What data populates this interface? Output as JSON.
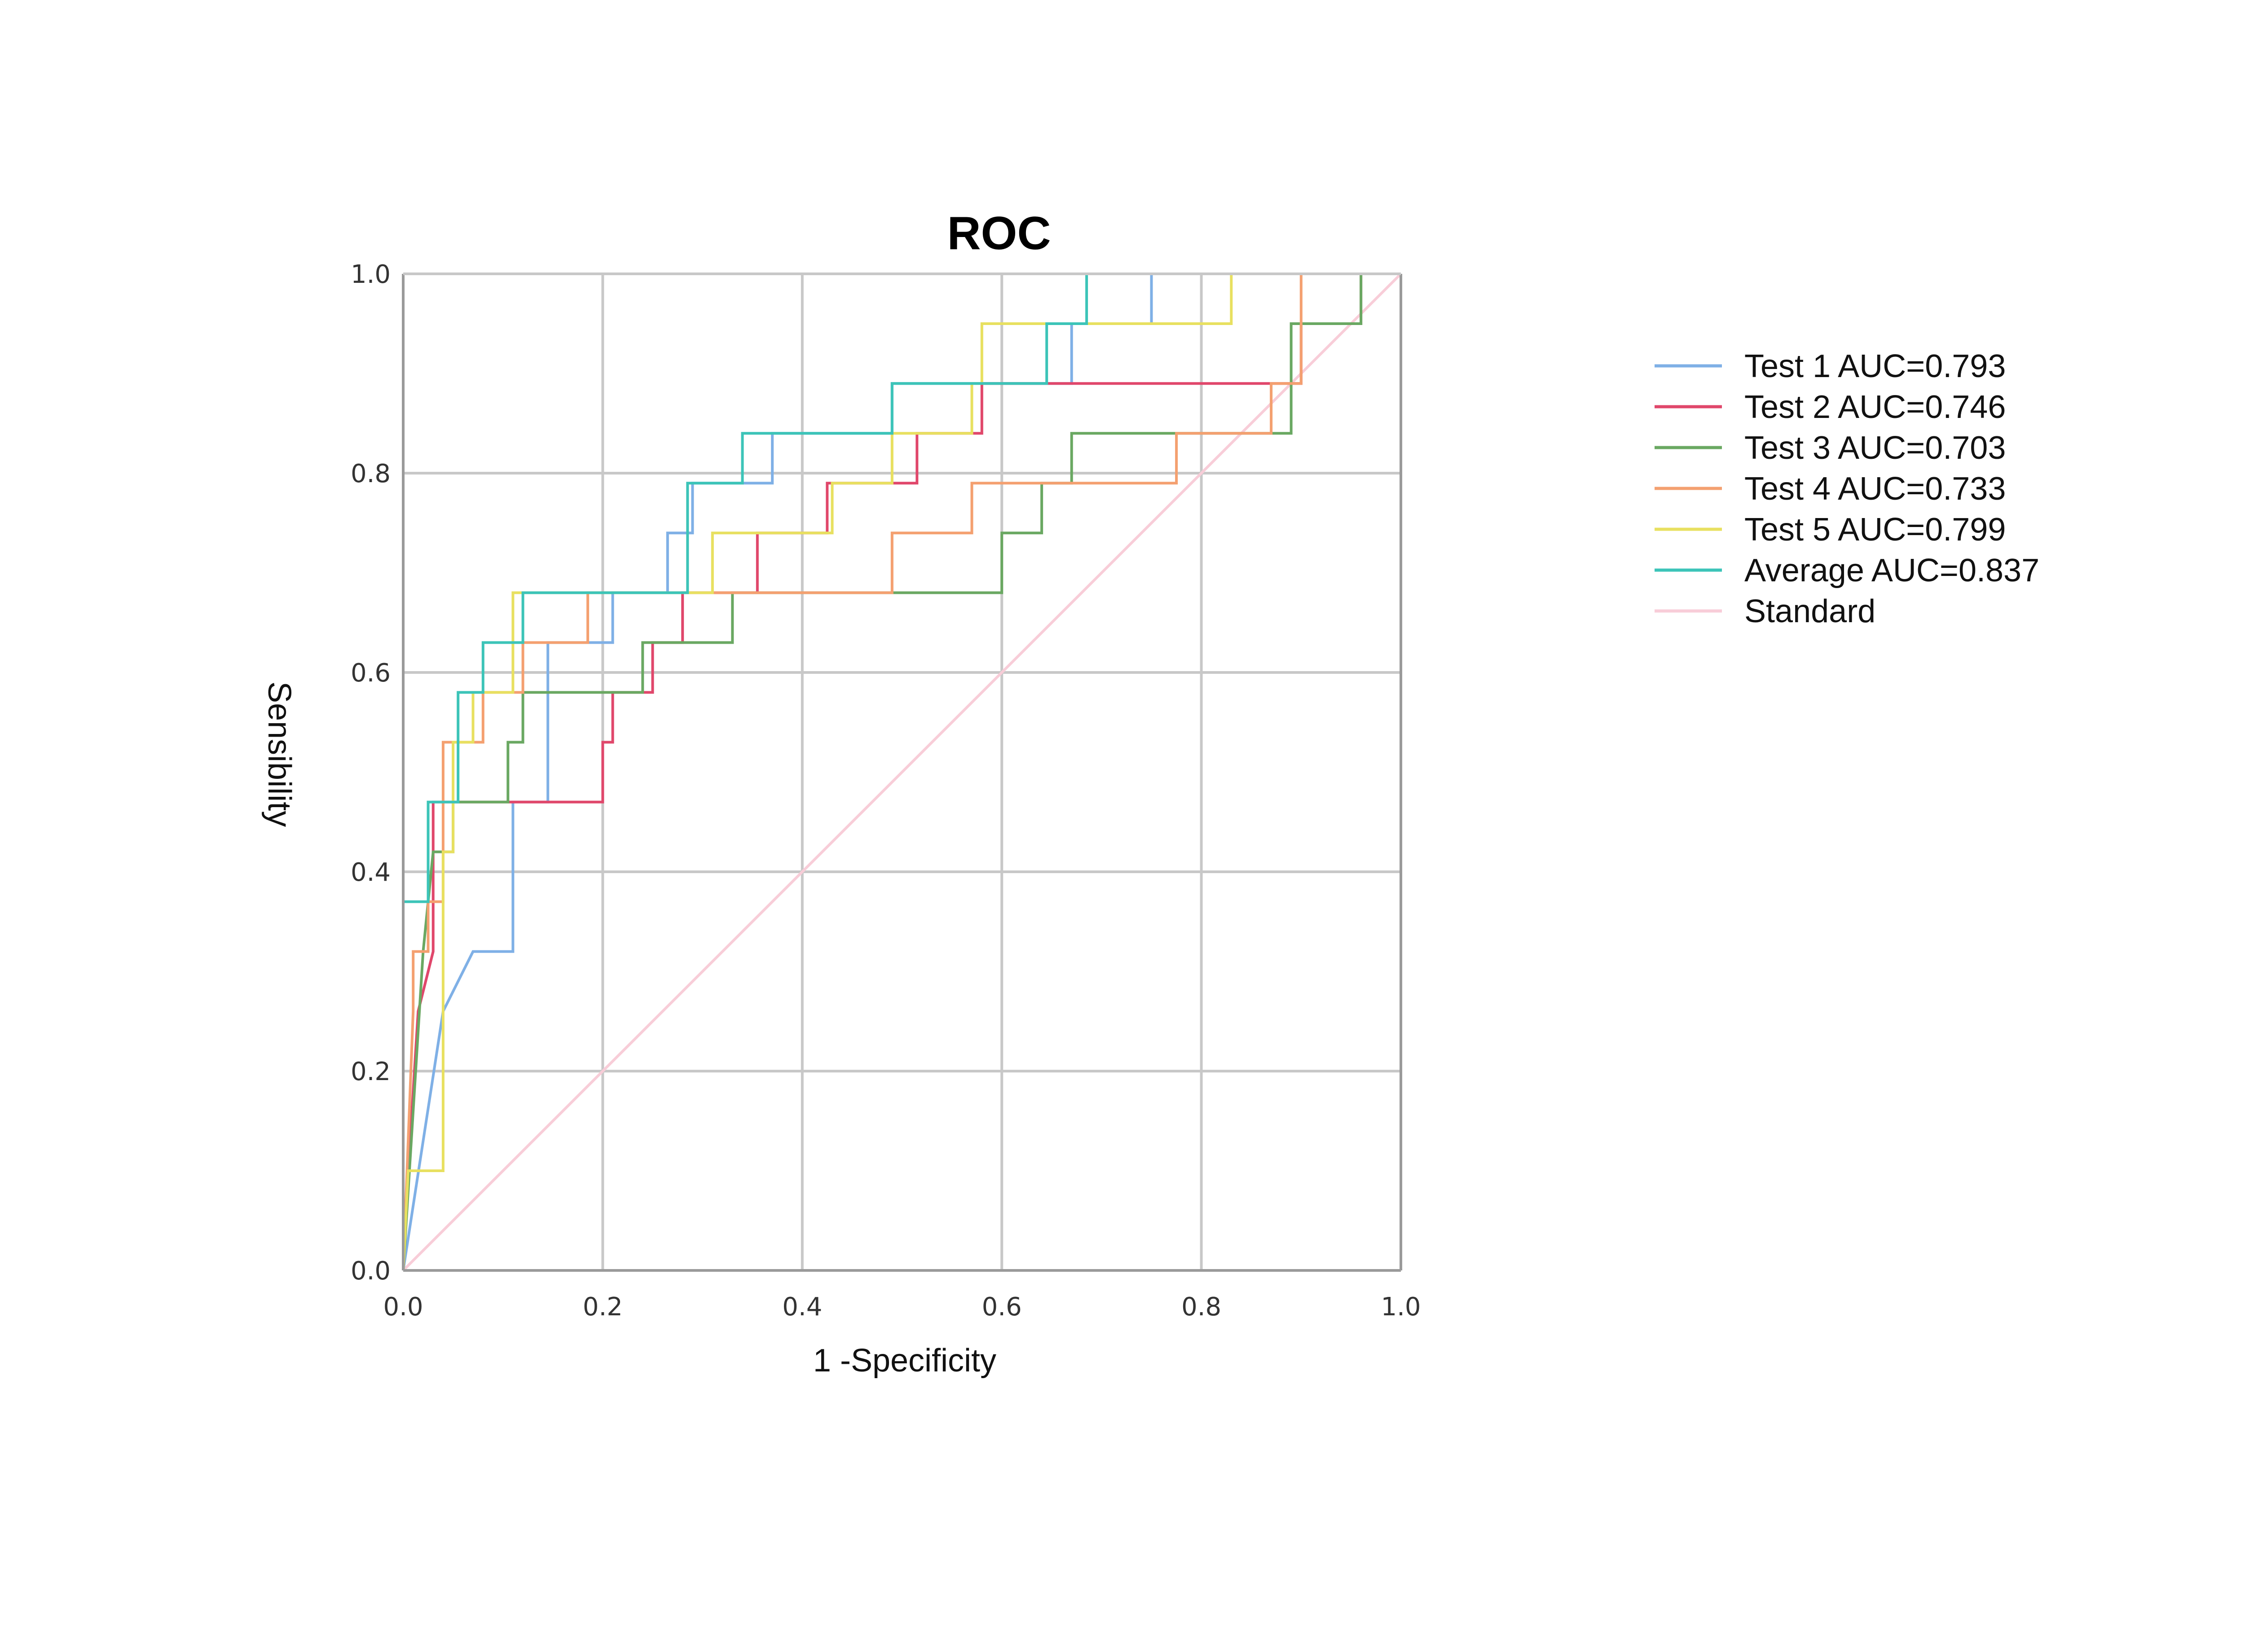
{
  "chart_data": {
    "type": "line",
    "title": "ROC",
    "xlabel": "1 -Specificity",
    "ylabel": "Sensibility",
    "xlim": [
      0,
      1
    ],
    "ylim": [
      0,
      1
    ],
    "xticks": [
      "0.0",
      "0.2",
      "0.4",
      "0.6",
      "0.8",
      "1.0"
    ],
    "yticks": [
      "0.0",
      "0.2",
      "0.4",
      "0.6",
      "0.8",
      "1.0"
    ],
    "grid": true,
    "legend_position": "right",
    "series": [
      {
        "name": "Test 1",
        "legend": "Test 1  AUC=0.793",
        "color": "#7fb0e6",
        "x": [
          0,
          0.04,
          0.07,
          0.11,
          0.11,
          0.145,
          0.145,
          0.21,
          0.21,
          0.265,
          0.265,
          0.29,
          0.29,
          0.35,
          0.35,
          0.37,
          0.37,
          0.49,
          0.49,
          0.67,
          0.67,
          0.75,
          0.75,
          0.94,
          1.0
        ],
        "y": [
          0,
          0.26,
          0.32,
          0.32,
          0.47,
          0.47,
          0.63,
          0.63,
          0.68,
          0.68,
          0.74,
          0.74,
          0.79,
          0.79,
          0.79,
          0.79,
          0.84,
          0.84,
          0.89,
          0.89,
          0.95,
          0.95,
          1.0,
          1.0,
          1.0
        ]
      },
      {
        "name": "Test 2",
        "legend": "Test 2  AUC=0.746",
        "color": "#e0476b",
        "x": [
          0,
          0.005,
          0.015,
          0.015,
          0.03,
          0.03,
          0.2,
          0.2,
          0.21,
          0.21,
          0.25,
          0.25,
          0.28,
          0.28,
          0.355,
          0.355,
          0.425,
          0.425,
          0.515,
          0.515,
          0.58,
          0.58,
          0.9,
          0.9,
          0.96,
          0.96
        ],
        "y": [
          0,
          0.1,
          0.26,
          0.26,
          0.32,
          0.47,
          0.47,
          0.53,
          0.53,
          0.58,
          0.58,
          0.63,
          0.63,
          0.68,
          0.68,
          0.74,
          0.74,
          0.79,
          0.79,
          0.84,
          0.84,
          0.89,
          0.89,
          0.95,
          0.95,
          1.0
        ]
      },
      {
        "name": "Test 3",
        "legend": "Test 3  AUC=0.703",
        "color": "#6aa862",
        "x": [
          0,
          0.02,
          0.02,
          0.03,
          0.03,
          0.05,
          0.05,
          0.105,
          0.105,
          0.12,
          0.12,
          0.24,
          0.24,
          0.33,
          0.33,
          0.6,
          0.6,
          0.64,
          0.64,
          0.67,
          0.67,
          0.89,
          0.89,
          0.96,
          0.96
        ],
        "y": [
          0,
          0.32,
          0.32,
          0.42,
          0.42,
          0.42,
          0.47,
          0.47,
          0.53,
          0.53,
          0.58,
          0.58,
          0.63,
          0.63,
          0.68,
          0.68,
          0.74,
          0.74,
          0.79,
          0.79,
          0.84,
          0.84,
          0.95,
          0.95,
          1.0
        ]
      },
      {
        "name": "Test 4",
        "legend": "Test 4  AUC=0.733",
        "color": "#f4a070",
        "x": [
          0,
          0.01,
          0.01,
          0.025,
          0.025,
          0.04,
          0.04,
          0.08,
          0.08,
          0.12,
          0.12,
          0.185,
          0.185,
          0.49,
          0.49,
          0.57,
          0.57,
          0.775,
          0.775,
          0.87,
          0.87,
          0.9,
          0.9,
          0.96
        ],
        "y": [
          0,
          0.26,
          0.32,
          0.32,
          0.37,
          0.37,
          0.53,
          0.53,
          0.58,
          0.58,
          0.63,
          0.63,
          0.68,
          0.68,
          0.74,
          0.74,
          0.79,
          0.79,
          0.84,
          0.84,
          0.89,
          0.89,
          1.0,
          1.0
        ]
      },
      {
        "name": "Test 5",
        "legend": "Test 5  AUC=0.799",
        "color": "#e8e060",
        "x": [
          0,
          0.005,
          0.005,
          0.04,
          0.04,
          0.05,
          0.05,
          0.07,
          0.07,
          0.11,
          0.11,
          0.31,
          0.31,
          0.43,
          0.43,
          0.49,
          0.49,
          0.57,
          0.57,
          0.58,
          0.58,
          0.83,
          0.83,
          1.0
        ],
        "y": [
          0,
          0.1,
          0.1,
          0.1,
          0.42,
          0.42,
          0.53,
          0.53,
          0.58,
          0.58,
          0.68,
          0.68,
          0.74,
          0.74,
          0.79,
          0.79,
          0.84,
          0.84,
          0.89,
          0.89,
          0.95,
          0.95,
          1.0,
          1.0
        ]
      },
      {
        "name": "Average",
        "legend": "Average AUC=0.837",
        "color": "#3cc4b8",
        "x": [
          0,
          0,
          0.025,
          0.025,
          0.055,
          0.055,
          0.08,
          0.08,
          0.12,
          0.12,
          0.285,
          0.285,
          0.34,
          0.34,
          0.49,
          0.49,
          0.645,
          0.645,
          0.685,
          0.685,
          1.0
        ],
        "y": [
          0,
          0.37,
          0.37,
          0.47,
          0.47,
          0.58,
          0.58,
          0.63,
          0.63,
          0.68,
          0.68,
          0.79,
          0.79,
          0.84,
          0.84,
          0.89,
          0.89,
          0.95,
          0.95,
          1.0,
          1.0
        ]
      },
      {
        "name": "Standard",
        "legend": "Standard",
        "color": "#f8cdd8",
        "x": [
          0,
          1
        ],
        "y": [
          0,
          1
        ]
      }
    ]
  }
}
